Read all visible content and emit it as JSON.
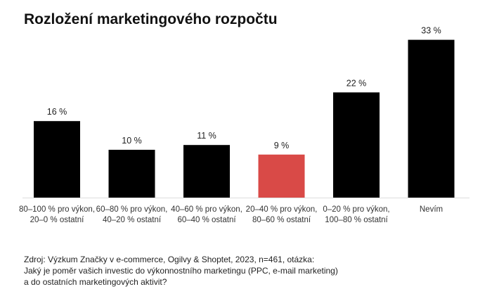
{
  "chart_data": {
    "type": "bar",
    "title": "Rozložení marketingového rozpočtu",
    "categories": [
      "80–100 % pro výkon, 20–0 % ostatní",
      "60–80 % pro výkon, 40–20 % ostatní",
      "40–60 % pro výkon, 60–40 % ostatní",
      "20–40 % pro výkon, 80–60 % ostatní",
      "0–20 % pro výkon, 100–80 % ostatní",
      "Nevím"
    ],
    "values": [
      16,
      10,
      11,
      9,
      22,
      33
    ],
    "value_labels": [
      "16 %",
      "10 %",
      "11 %",
      "9 %",
      "22 %",
      "33 %"
    ],
    "highlight_index": 3,
    "colors": {
      "default": "#000000",
      "highlight": "#d94a47",
      "axis": "#dddddd"
    },
    "ylim": [
      0,
      35
    ],
    "grid": false,
    "xlabel": "",
    "ylabel": ""
  },
  "source": {
    "lines": [
      "Zdroj: Výzkum Značky v e-commerce, Ogilvy & Shoptet, 2023, n=461, otázka:",
      "Jaký je poměr vašich investic do výkonnostního marketingu (PPC, e-mail marketing)",
      "a do ostatních marketingových aktivit?"
    ]
  }
}
